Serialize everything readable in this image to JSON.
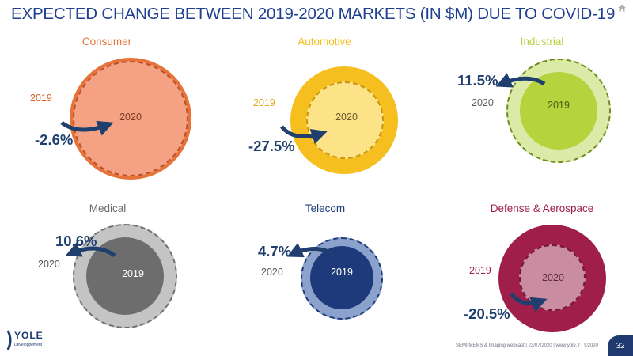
{
  "slide": {
    "title": "EXPECTED CHANGE BETWEEN 2019-2020 MARKETS (IN $M) DUE TO COVID-19",
    "footer": "SEMI MEMS & Imaging webcast | 23/07/2020 | www.yole.fr | ©2020",
    "page_number": "32",
    "logo_text": "YOLE",
    "logo_subtext": "Développement"
  },
  "colors": {
    "title": "#1f3f8f",
    "consumer": "#e8733a",
    "automotive": "#f5bf1f",
    "industrial": "#b5d33d",
    "medical": "#8c8c8c",
    "telecom": "#1e3a7a",
    "defense": "#a01f4a",
    "arrow": "#1f3f6f"
  },
  "chart_data": {
    "type": "bubble-comparison",
    "year_labels": [
      "2019",
      "2020"
    ],
    "markets": [
      {
        "name": "Consumer",
        "change": "-2.6%",
        "change_value": -2.6,
        "label_2019": "2019",
        "label_2020": "2020"
      },
      {
        "name": "Automotive",
        "change": "-27.5%",
        "change_value": -27.5,
        "label_2019": "2019",
        "label_2020": "2020"
      },
      {
        "name": "Industrial",
        "change": "11.5%",
        "change_value": 11.5,
        "label_2019": "2019",
        "label_2020": "2020"
      },
      {
        "name": "Medical",
        "change": "10.6%",
        "change_value": 10.6,
        "label_2019": "2019",
        "label_2020": "2020"
      },
      {
        "name": "Telecom",
        "change": "4.7%",
        "change_value": 4.7,
        "label_2019": "2019",
        "label_2020": "2020"
      },
      {
        "name": "Defense & Aerospace",
        "change": "-20.5%",
        "change_value": -20.5,
        "label_2019": "2019",
        "label_2020": "2020"
      }
    ]
  }
}
